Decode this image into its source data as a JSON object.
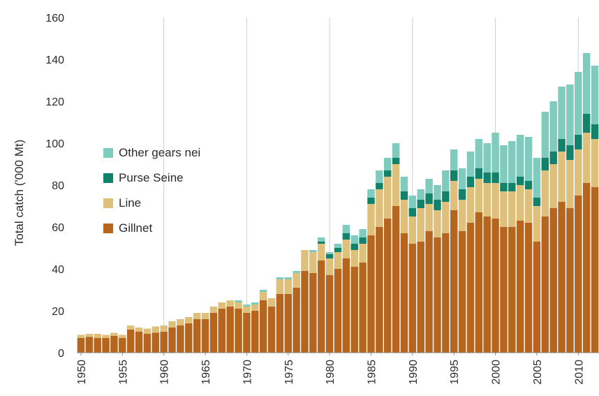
{
  "chart_data": {
    "type": "bar",
    "stacked": true,
    "ylabel": "Total catch ('000 Mt)",
    "xlabel": "",
    "ylim": [
      0,
      160
    ],
    "yticks": [
      0,
      20,
      40,
      60,
      80,
      100,
      120,
      140,
      160
    ],
    "xticks": [
      "1950",
      "1955",
      "1960",
      "1965",
      "1970",
      "1975",
      "1980",
      "1985",
      "1990",
      "1995",
      "2000",
      "2005",
      "2010"
    ],
    "vertical_gridlines_at": [
      "1960",
      "1970",
      "1980",
      "1990",
      "2000",
      "2010"
    ],
    "legend_placement": "center-left",
    "categories": [
      1950,
      1951,
      1952,
      1953,
      1954,
      1955,
      1956,
      1957,
      1958,
      1959,
      1960,
      1961,
      1962,
      1963,
      1964,
      1965,
      1966,
      1967,
      1968,
      1969,
      1970,
      1971,
      1972,
      1973,
      1974,
      1975,
      1976,
      1977,
      1978,
      1979,
      1980,
      1981,
      1982,
      1983,
      1984,
      1985,
      1986,
      1987,
      1988,
      1989,
      1990,
      1991,
      1992,
      1993,
      1994,
      1995,
      1996,
      1997,
      1998,
      1999,
      2000,
      2001,
      2002,
      2003,
      2004,
      2005,
      2006,
      2007,
      2008,
      2009,
      2010,
      2011,
      2012
    ],
    "series": [
      {
        "name": "Gillnet",
        "color": "#b5651d",
        "values": [
          7,
          7.5,
          7,
          7,
          8,
          7,
          11,
          10,
          9,
          9.5,
          10,
          12,
          13,
          14,
          16,
          16,
          19,
          21,
          22,
          21,
          19,
          20,
          25,
          22,
          28,
          28,
          31,
          39,
          38,
          44,
          37,
          40,
          45,
          41,
          43,
          56,
          60,
          64,
          70,
          57,
          52,
          53,
          58,
          55,
          57,
          68,
          58,
          62,
          67,
          65,
          64,
          60,
          60,
          63,
          62,
          53,
          65,
          69,
          72,
          69,
          75,
          81,
          79
        ]
      },
      {
        "name": "Line",
        "color": "#dfc07b",
        "values": [
          1.5,
          1.5,
          2,
          1.5,
          1.5,
          1.5,
          2,
          2,
          2.5,
          3,
          3,
          3,
          3,
          3,
          3,
          3,
          3,
          3,
          3,
          3,
          3,
          3,
          4,
          4,
          7,
          7,
          7,
          10,
          10,
          8,
          8,
          8,
          9,
          8,
          9,
          15,
          18,
          20,
          20,
          16,
          13,
          16,
          13,
          13,
          15,
          14,
          15,
          17,
          16,
          16,
          17,
          17,
          17,
          17,
          16,
          17,
          22,
          21,
          24,
          23,
          22,
          24,
          23
        ]
      },
      {
        "name": "Purse Seine",
        "color": "#13826a",
        "values": [
          0,
          0,
          0,
          0,
          0,
          0,
          0,
          0,
          0,
          0,
          0,
          0,
          0,
          0,
          0,
          0,
          0,
          0,
          0,
          0,
          0,
          0,
          0,
          0,
          0,
          0,
          0,
          0,
          0,
          1,
          2,
          2,
          3,
          3,
          3,
          3,
          3,
          3,
          3,
          4,
          4,
          4,
          5,
          5,
          5,
          5,
          5,
          5,
          5,
          5,
          5,
          4,
          4,
          4,
          4,
          4,
          6,
          6,
          6,
          7,
          7,
          9,
          7
        ]
      },
      {
        "name": "Other gears nei",
        "color": "#7fcbbd",
        "values": [
          0,
          0,
          0,
          0,
          0,
          0,
          0,
          0,
          0,
          0,
          0,
          0,
          0,
          0,
          0,
          0,
          0,
          0,
          0,
          1,
          1,
          1,
          1,
          0,
          1,
          1,
          1,
          0,
          1,
          2,
          1,
          2,
          4,
          4,
          4,
          4,
          6,
          6,
          7,
          7,
          6,
          5,
          7,
          7,
          10,
          10,
          10,
          12,
          14,
          14,
          19,
          18,
          20,
          20,
          21,
          19,
          22,
          24,
          25,
          29,
          30,
          29,
          28
        ]
      }
    ]
  }
}
